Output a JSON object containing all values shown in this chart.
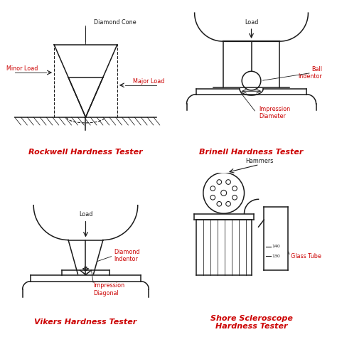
{
  "bg_color": "#ffffff",
  "line_color": "#1a1a1a",
  "red_color": "#cc0000",
  "dark_color": "#1a1a1a",
  "titles": [
    "Rockwell Hardness Tester",
    "Brinell Hardness Tester",
    "Vikers Hardness Tester",
    "Shore Scleroscope\nHardness Tester"
  ],
  "title_fontsize": 8.0,
  "label_fontsize": 5.8,
  "lw": 1.1
}
